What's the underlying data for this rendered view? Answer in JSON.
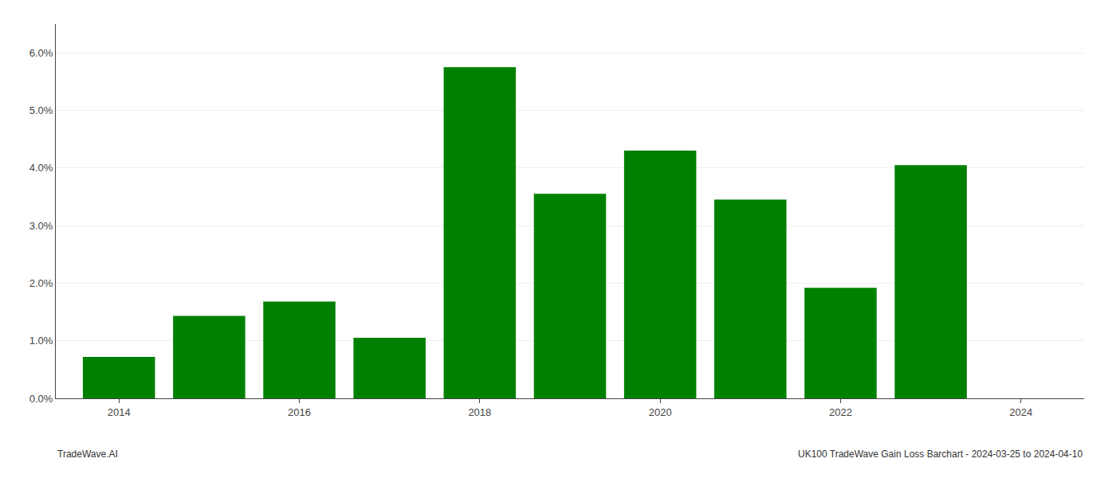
{
  "chart_data": {
    "type": "bar",
    "x": [
      2014,
      2015,
      2016,
      2017,
      2018,
      2019,
      2020,
      2021,
      2022,
      2023
    ],
    "values": [
      0.0072,
      0.0143,
      0.0168,
      0.0105,
      0.0575,
      0.0355,
      0.043,
      0.0345,
      0.0192,
      0.0405
    ],
    "color": "#008000",
    "xlim": [
      2013.3,
      2024.7
    ],
    "xticks": [
      2014,
      2016,
      2018,
      2020,
      2022,
      2024
    ],
    "ylim": [
      0,
      0.065
    ],
    "yticks": [
      {
        "value": 0.0,
        "label": "0.0%"
      },
      {
        "value": 0.01,
        "label": "1.0%"
      },
      {
        "value": 0.02,
        "label": "2.0%"
      },
      {
        "value": 0.03,
        "label": "3.0%"
      },
      {
        "value": 0.04,
        "label": "4.0%"
      },
      {
        "value": 0.05,
        "label": "5.0%"
      },
      {
        "value": 0.06,
        "label": "6.0%"
      }
    ],
    "grid": true,
    "annotations": [
      "TradeWave.AI",
      "UK100 TradeWave Gain Loss Barchart - 2024-03-25 to 2024-04-10"
    ]
  }
}
